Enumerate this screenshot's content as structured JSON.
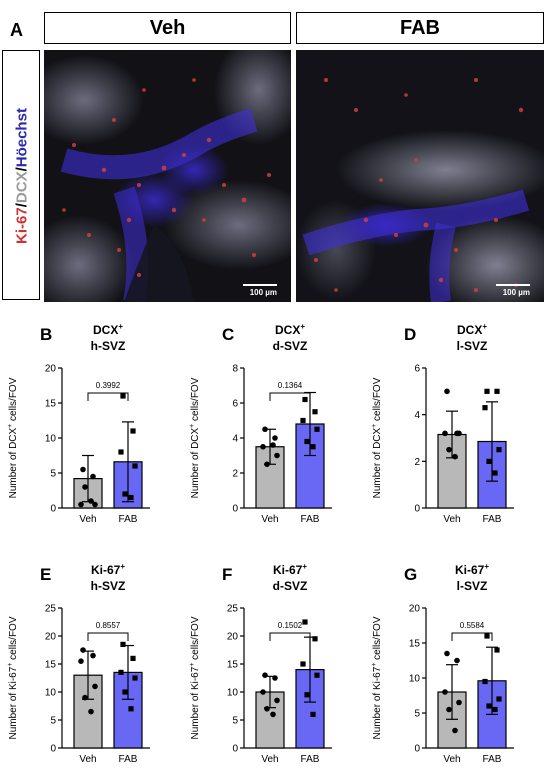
{
  "figure": {
    "panel_a_letter": "A",
    "headers": [
      "Veh",
      "FAB"
    ],
    "stain_label": {
      "parts": [
        {
          "text": "Ki-67",
          "color": "#d03030"
        },
        {
          "text": "/",
          "color": "#000000"
        },
        {
          "text": "DCX",
          "color": "#9a9a9a"
        },
        {
          "text": "/",
          "color": "#000000"
        },
        {
          "text": "Höechst",
          "color": "#2a2ab0"
        }
      ]
    },
    "scale_bars": [
      "100 µm",
      "100 µm"
    ]
  },
  "colors": {
    "veh_bar": "#b8b8b8",
    "fab_bar": "#6868f4"
  },
  "chart_data": [
    {
      "letter": "B",
      "title_main": "DCX",
      "title_sup": "+",
      "title_sub": "h-SVZ",
      "type": "bar",
      "ylabel_main": "Number of DCX",
      "ylabel_sup": "+",
      "ylabel_end": " cells/FOV",
      "categories": [
        "Veh",
        "FAB"
      ],
      "values": [
        4.2,
        6.6
      ],
      "errors": [
        3.3,
        5.7
      ],
      "points": [
        [
          5.5,
          4.5,
          0.5,
          0.5,
          3.0,
          1.0
        ],
        [
          16.0,
          11.0,
          8.0,
          6.0,
          2.0,
          1.5
        ]
      ],
      "ylim": [
        0,
        20
      ],
      "yticks": [
        0,
        5,
        10,
        15,
        20
      ],
      "pvalue": "0.3992"
    },
    {
      "letter": "C",
      "title_main": "DCX",
      "title_sup": "+",
      "title_sub": "d-SVZ",
      "type": "bar",
      "ylabel_main": "Number of DCX",
      "ylabel_sup": "+",
      "ylabel_end": " cells/FOV",
      "categories": [
        "Veh",
        "FAB"
      ],
      "values": [
        3.5,
        4.8
      ],
      "errors": [
        1.0,
        1.8
      ],
      "points": [
        [
          4.5,
          4.0,
          3.5,
          3.0,
          2.5,
          3.6
        ],
        [
          6.2,
          5.5,
          5.0,
          4.5,
          3.8,
          3.5
        ]
      ],
      "ylim": [
        0,
        8
      ],
      "yticks": [
        0,
        2,
        4,
        6,
        8
      ],
      "pvalue": "0.1364"
    },
    {
      "letter": "D",
      "title_main": "DCX",
      "title_sup": "+",
      "title_sub": "l-SVZ",
      "type": "bar",
      "ylabel_main": "Number of DCX",
      "ylabel_sup": "+",
      "ylabel_end": " cells/FOV",
      "categories": [
        "Veh",
        "FAB"
      ],
      "values": [
        3.15,
        2.85
      ],
      "errors": [
        1.0,
        1.7
      ],
      "points": [
        [
          5.0,
          3.2,
          3.2,
          3.2,
          2.5,
          2.2
        ],
        [
          5.0,
          5.0,
          4.3,
          2.5,
          2.0,
          1.5
        ]
      ],
      "ylim": [
        0,
        6
      ],
      "yticks": [
        0,
        2,
        4,
        6
      ],
      "pvalue": ""
    },
    {
      "letter": "E",
      "title_main": "Ki-67",
      "title_sup": "+",
      "title_sub": "h-SVZ",
      "type": "bar",
      "ylabel_main": "Number of Ki-67",
      "ylabel_sup": "+",
      "ylabel_end": " cells/FOV",
      "categories": [
        "Veh",
        "FAB"
      ],
      "values": [
        13.0,
        13.5
      ],
      "errors": [
        4.3,
        4.8
      ],
      "points": [
        [
          17.5,
          16.5,
          15.5,
          11.0,
          9.0,
          6.5
        ],
        [
          18.5,
          16.0,
          13.5,
          12.5,
          10.0,
          7.0
        ]
      ],
      "ylim": [
        0,
        25
      ],
      "yticks": [
        0,
        5,
        10,
        15,
        20,
        25
      ],
      "pvalue": "0.8557"
    },
    {
      "letter": "F",
      "title_main": "Ki-67",
      "title_sup": "+",
      "title_sub": "d-SVZ",
      "type": "bar",
      "ylabel_main": "Number of Ki-67",
      "ylabel_sup": "+",
      "ylabel_end": " cells/FOV",
      "categories": [
        "Veh",
        "FAB"
      ],
      "values": [
        10.0,
        14.0
      ],
      "errors": [
        2.8,
        5.8
      ],
      "points": [
        [
          13.0,
          12.5,
          10.0,
          8.5,
          7.0,
          6.0
        ],
        [
          22.5,
          19.5,
          15.0,
          13.0,
          9.5,
          6.0
        ]
      ],
      "ylim": [
        0,
        25
      ],
      "yticks": [
        0,
        5,
        10,
        15,
        20,
        25
      ],
      "pvalue": "0.1502"
    },
    {
      "letter": "G",
      "title_main": "Ki-67",
      "title_sup": "+",
      "title_sub": "l-SVZ",
      "type": "bar",
      "ylabel_main": "Number of Ki-67",
      "ylabel_sup": "+",
      "ylabel_end": " cells/FOV",
      "categories": [
        "Veh",
        "FAB"
      ],
      "values": [
        8.0,
        9.6
      ],
      "errors": [
        3.9,
        4.8
      ],
      "points": [
        [
          13.5,
          12.5,
          8.0,
          6.5,
          5.5,
          2.5
        ],
        [
          16.0,
          14.0,
          9.5,
          7.0,
          6.0,
          5.5
        ]
      ],
      "ylim": [
        0,
        20
      ],
      "yticks": [
        0,
        5,
        10,
        15,
        20
      ],
      "pvalue": "0.5584"
    }
  ]
}
